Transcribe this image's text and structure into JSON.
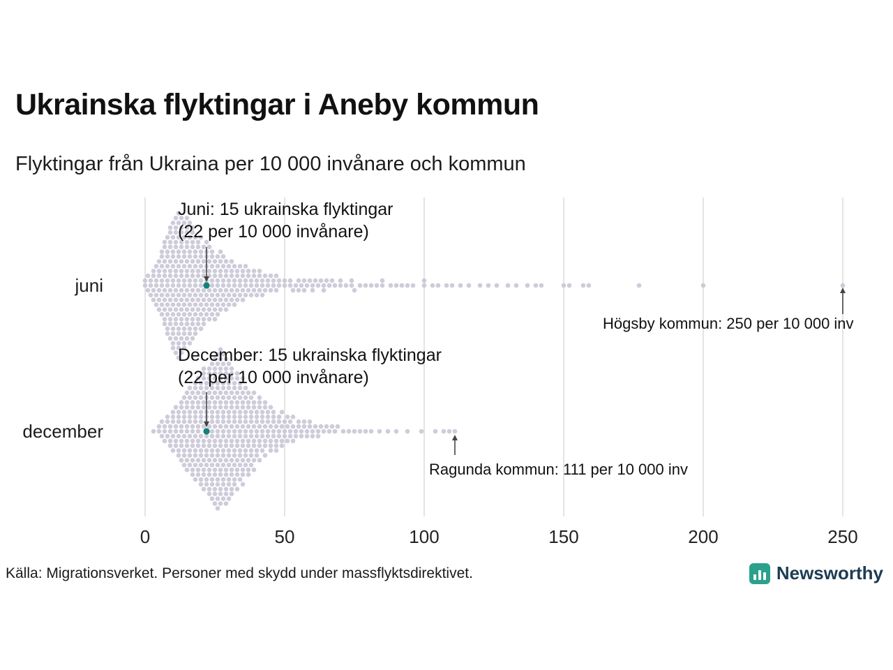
{
  "source": "Källa: Migrationsverket. Personer med skydd under massflyktsdirektivet.",
  "branding": {
    "name": "Newsworthy",
    "icon_color": "#2aa18c",
    "text_color": "#1d3c53"
  },
  "colors": {
    "dot": "#c9c6d6",
    "highlight": "#14807a",
    "gridline": "#d9d9d9",
    "axis_text": "#222222",
    "arrow": "#444444"
  },
  "chart_data": {
    "type": "beeswarm",
    "title": "Ukrainska flyktingar i Aneby kommun",
    "subtitle": "Flyktingar från Ukraina per 10 000 invånare och kommun",
    "unit": "per 10 000 invånare",
    "xlim": [
      0,
      250
    ],
    "x_ticks": [
      0,
      50,
      100,
      150,
      200,
      250
    ],
    "grid": "vertical",
    "annotations": {
      "juni": {
        "line1": "Juni: 15 ukrainska flyktingar",
        "line2": "(22 per 10 000 invånare)",
        "value": 22,
        "row": "juni"
      },
      "december": {
        "line1": "December: 15 ukrainska flyktingar",
        "line2": "(22 per 10 000 invånare)",
        "value": 22,
        "row": "december"
      },
      "hogsby": {
        "label": "Högsby kommun: 250 per 10 000 inv",
        "value": 250,
        "row": "juni"
      },
      "ragunda": {
        "label": "Ragunda kommun: 111 per 10 000 inv",
        "value": 111,
        "row": "december"
      }
    },
    "rows": [
      {
        "key": "juni",
        "label": "juni",
        "highlight_value": 22,
        "highlight_note": "Aneby kommun: 15 flyktingar, 22 per 10 000 invånare",
        "max_value": 250,
        "histogram": [
          [
            0,
            2
          ],
          [
            1,
            2
          ],
          [
            2,
            3
          ],
          [
            3,
            4
          ],
          [
            4,
            5
          ],
          [
            5,
            6
          ],
          [
            6,
            8
          ],
          [
            7,
            10
          ],
          [
            8,
            11
          ],
          [
            9,
            13
          ],
          [
            10,
            14
          ],
          [
            11,
            15
          ],
          [
            12,
            16
          ],
          [
            13,
            15
          ],
          [
            14,
            14
          ],
          [
            15,
            14
          ],
          [
            16,
            13
          ],
          [
            17,
            13
          ],
          [
            18,
            11
          ],
          [
            19,
            10
          ],
          [
            20,
            10
          ],
          [
            21,
            9
          ],
          [
            22,
            9
          ],
          [
            23,
            8
          ],
          [
            24,
            8
          ],
          [
            25,
            7
          ],
          [
            26,
            7
          ],
          [
            27,
            7
          ],
          [
            28,
            6
          ],
          [
            29,
            6
          ],
          [
            30,
            5
          ],
          [
            31,
            5
          ],
          [
            32,
            5
          ],
          [
            33,
            4
          ],
          [
            34,
            4
          ],
          [
            35,
            4
          ],
          [
            36,
            4
          ],
          [
            37,
            3
          ],
          [
            38,
            3
          ],
          [
            39,
            3
          ],
          [
            40,
            3
          ],
          [
            41,
            3
          ],
          [
            42,
            3
          ],
          [
            43,
            2
          ],
          [
            44,
            2
          ],
          [
            45,
            2
          ],
          [
            46,
            2
          ],
          [
            47,
            2
          ],
          [
            48,
            2
          ],
          [
            50,
            2
          ],
          [
            52,
            2
          ],
          [
            53,
            1
          ],
          [
            54,
            1
          ],
          [
            55,
            2
          ],
          [
            56,
            1
          ],
          [
            57,
            2
          ],
          [
            58,
            1
          ],
          [
            59,
            1
          ],
          [
            60,
            2
          ],
          [
            61,
            1
          ],
          [
            62,
            1
          ],
          [
            63,
            1
          ],
          [
            64,
            2
          ],
          [
            65,
            1
          ],
          [
            66,
            1
          ],
          [
            67,
            1
          ],
          [
            68,
            1
          ],
          [
            70,
            2
          ],
          [
            72,
            1
          ],
          [
            74,
            2
          ],
          [
            75,
            1
          ],
          [
            77,
            1
          ],
          [
            79,
            1
          ],
          [
            81,
            1
          ],
          [
            83,
            1
          ],
          [
            85,
            2
          ],
          [
            88,
            1
          ],
          [
            90,
            1
          ],
          [
            92,
            1
          ],
          [
            94,
            1
          ],
          [
            96,
            1
          ],
          [
            100,
            2
          ],
          [
            103,
            1
          ],
          [
            105,
            1
          ],
          [
            108,
            1
          ],
          [
            110,
            1
          ],
          [
            113,
            1
          ],
          [
            116,
            1
          ],
          [
            120,
            1
          ],
          [
            123,
            1
          ],
          [
            126,
            1
          ],
          [
            130,
            1
          ],
          [
            133,
            1
          ],
          [
            137,
            1
          ],
          [
            140,
            1
          ],
          [
            142,
            1
          ],
          [
            150,
            1
          ],
          [
            152,
            1
          ],
          [
            157,
            1
          ],
          [
            159,
            1
          ],
          [
            177,
            1
          ],
          [
            200,
            1
          ],
          [
            250,
            1
          ]
        ]
      },
      {
        "key": "december",
        "label": "december",
        "highlight_value": 22,
        "highlight_note": "Aneby kommun: 15 flyktingar, 22 per 10 000 invånare",
        "max_value": 111,
        "histogram": [
          [
            3,
            1
          ],
          [
            5,
            2
          ],
          [
            6,
            2
          ],
          [
            7,
            3
          ],
          [
            8,
            3
          ],
          [
            9,
            4
          ],
          [
            10,
            5
          ],
          [
            11,
            5
          ],
          [
            12,
            6
          ],
          [
            13,
            7
          ],
          [
            14,
            8
          ],
          [
            15,
            9
          ],
          [
            16,
            9
          ],
          [
            17,
            10
          ],
          [
            18,
            11
          ],
          [
            19,
            11
          ],
          [
            20,
            12
          ],
          [
            21,
            13
          ],
          [
            22,
            13
          ],
          [
            23,
            14
          ],
          [
            24,
            15
          ],
          [
            25,
            16
          ],
          [
            26,
            17
          ],
          [
            27,
            17
          ],
          [
            28,
            16
          ],
          [
            29,
            16
          ],
          [
            30,
            15
          ],
          [
            31,
            14
          ],
          [
            32,
            13
          ],
          [
            33,
            12
          ],
          [
            34,
            12
          ],
          [
            35,
            11
          ],
          [
            36,
            10
          ],
          [
            37,
            9
          ],
          [
            38,
            9
          ],
          [
            39,
            8
          ],
          [
            40,
            7
          ],
          [
            41,
            7
          ],
          [
            42,
            6
          ],
          [
            43,
            6
          ],
          [
            44,
            5
          ],
          [
            45,
            5
          ],
          [
            46,
            5
          ],
          [
            47,
            4
          ],
          [
            48,
            4
          ],
          [
            49,
            4
          ],
          [
            50,
            3
          ],
          [
            51,
            3
          ],
          [
            52,
            3
          ],
          [
            53,
            3
          ],
          [
            54,
            2
          ],
          [
            55,
            2
          ],
          [
            56,
            2
          ],
          [
            57,
            2
          ],
          [
            58,
            2
          ],
          [
            59,
            2
          ],
          [
            60,
            2
          ],
          [
            61,
            1
          ],
          [
            62,
            2
          ],
          [
            63,
            1
          ],
          [
            64,
            1
          ],
          [
            65,
            1
          ],
          [
            66,
            1
          ],
          [
            67,
            1
          ],
          [
            68,
            1
          ],
          [
            69,
            1
          ],
          [
            71,
            1
          ],
          [
            73,
            1
          ],
          [
            75,
            1
          ],
          [
            77,
            1
          ],
          [
            79,
            1
          ],
          [
            81,
            1
          ],
          [
            84,
            1
          ],
          [
            87,
            1
          ],
          [
            90,
            1
          ],
          [
            94,
            1
          ],
          [
            99,
            1
          ],
          [
            104,
            1
          ],
          [
            107,
            1
          ],
          [
            109,
            1
          ],
          [
            111,
            1
          ]
        ]
      }
    ]
  }
}
